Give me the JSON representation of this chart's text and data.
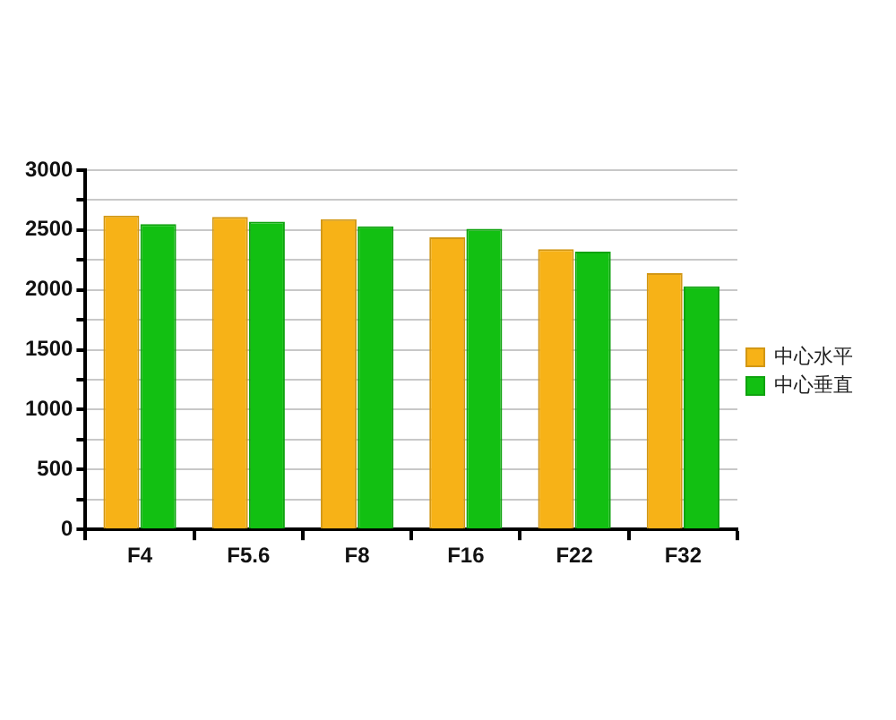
{
  "chart_data": {
    "type": "bar",
    "categories": [
      "F4",
      "F5.6",
      "F8",
      "F16",
      "F22",
      "F32"
    ],
    "series": [
      {
        "name": "中心水平",
        "color": "#f7b217",
        "values": [
          2620,
          2610,
          2590,
          2440,
          2340,
          2140
        ]
      },
      {
        "name": "中心垂直",
        "color": "#12c012",
        "values": [
          2550,
          2570,
          2530,
          2510,
          2320,
          2030
        ]
      }
    ],
    "ylim": [
      0,
      3000
    ],
    "yticks": [
      0,
      {
        "value": 250,
        "label": null
      },
      500,
      {
        "value": 750,
        "label": null
      },
      1000,
      {
        "value": 1250,
        "label": null
      },
      1500,
      {
        "value": 1750,
        "label": null
      },
      2000,
      {
        "value": 2250,
        "label": null
      },
      2500,
      {
        "value": 2750,
        "label": null
      },
      3000
    ],
    "grid": "y",
    "legend": "right"
  }
}
